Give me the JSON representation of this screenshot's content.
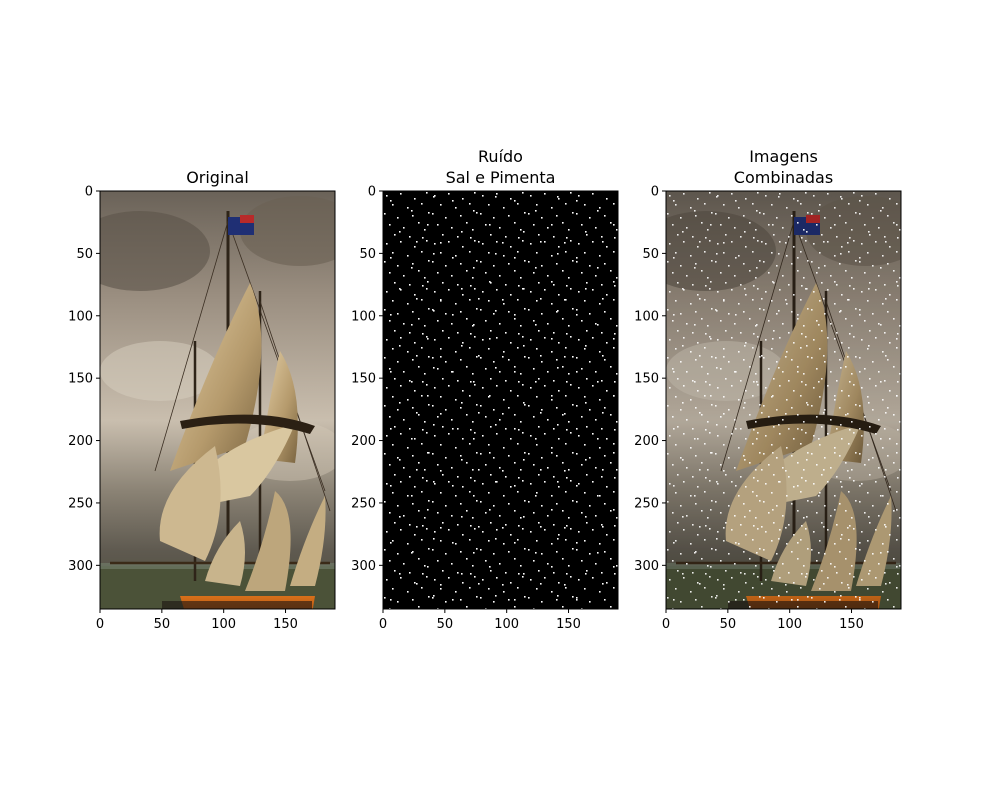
{
  "chart_data": [
    {
      "type": "image",
      "title_lines": [
        "Original"
      ],
      "xlim": [
        0,
        190
      ],
      "ylim": [
        335,
        0
      ],
      "xticks": [
        0,
        50,
        100,
        150
      ],
      "yticks": [
        0,
        50,
        100,
        150,
        200,
        250,
        300
      ],
      "content": "ship"
    },
    {
      "type": "image",
      "title_lines": [
        "Ruído",
        "Sal e Pimenta"
      ],
      "xlim": [
        0,
        190
      ],
      "ylim": [
        335,
        0
      ],
      "xticks": [
        0,
        50,
        100,
        150
      ],
      "yticks": [
        0,
        50,
        100,
        150,
        200,
        250,
        300
      ],
      "content": "noise"
    },
    {
      "type": "image",
      "title_lines": [
        "Imagens",
        "Combinadas"
      ],
      "xlim": [
        0,
        190
      ],
      "ylim": [
        335,
        0
      ],
      "xticks": [
        0,
        50,
        100,
        150
      ],
      "yticks": [
        0,
        50,
        100,
        150,
        200,
        250,
        300
      ],
      "content": "ship+noise"
    }
  ]
}
